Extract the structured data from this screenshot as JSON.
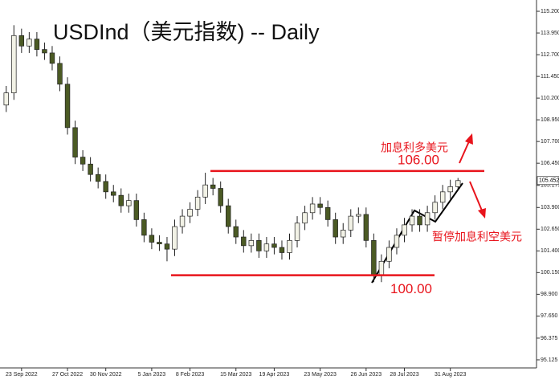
{
  "chart_data": {
    "type": "candlestick",
    "title": "USDInd（美元指数) -- Daily",
    "categories": [
      null,
      null,
      "23 Sep 2022",
      null,
      null,
      null,
      null,
      null,
      "27 Oct 2022",
      null,
      null,
      null,
      null,
      "30 Nov 2022",
      null,
      null,
      null,
      null,
      null,
      "5 Jan 2023",
      null,
      null,
      null,
      null,
      "8 Feb 2023",
      null,
      null,
      null,
      null,
      null,
      "15 Mar 2023",
      null,
      null,
      null,
      null,
      "19 Apr 2023",
      null,
      null,
      null,
      null,
      null,
      "23 May 2023",
      null,
      null,
      null,
      null,
      null,
      "26 Jun 2023",
      null,
      null,
      null,
      null,
      "28 Jul 2023",
      null,
      null,
      null,
      null,
      null,
      "31 Aug 2023",
      null
    ],
    "open": [
      109.8,
      110.5,
      113.8,
      113.2,
      113.6,
      113.0,
      112.8,
      112.2,
      111.0,
      108.5,
      106.8,
      106.4,
      105.8,
      105.4,
      104.8,
      104.6,
      104.0,
      104.3,
      103.2,
      102.3,
      101.9,
      101.8,
      101.5,
      102.8,
      103.4,
      103.8,
      104.5,
      105.2,
      105.0,
      104.0,
      102.8,
      102.2,
      101.7,
      102.0,
      101.4,
      101.8,
      101.6,
      101.3,
      102.0,
      103.0,
      103.6,
      104.1,
      103.9,
      103.2,
      102.2,
      102.6,
      103.4,
      103.5,
      102.0,
      100.0,
      100.8,
      101.6,
      102.3,
      102.9,
      103.4,
      102.9,
      103.6,
      104.2,
      104.8,
      105.1
    ],
    "high": [
      110.9,
      114.4,
      114.2,
      114.0,
      114.0,
      113.4,
      113.2,
      112.6,
      111.4,
      108.9,
      107.2,
      106.8,
      106.2,
      105.8,
      105.2,
      105.0,
      104.7,
      104.7,
      103.6,
      102.7,
      102.3,
      102.2,
      103.2,
      103.8,
      104.2,
      104.9,
      105.9,
      105.6,
      105.4,
      104.4,
      103.2,
      102.6,
      102.4,
      102.4,
      102.2,
      102.2,
      102.0,
      102.4,
      103.4,
      104.0,
      104.5,
      104.5,
      104.3,
      103.6,
      103.0,
      103.8,
      103.9,
      103.9,
      102.4,
      101.2,
      102.0,
      102.7,
      103.3,
      103.8,
      103.8,
      104.0,
      104.6,
      105.2,
      105.5,
      105.6
    ],
    "low": [
      109.4,
      110.1,
      112.8,
      112.8,
      112.6,
      112.4,
      111.8,
      110.6,
      108.1,
      106.4,
      106.0,
      105.4,
      105.0,
      104.4,
      104.2,
      103.6,
      103.6,
      102.8,
      101.9,
      101.5,
      101.4,
      100.8,
      101.1,
      102.4,
      103.0,
      103.4,
      104.1,
      104.6,
      103.6,
      102.4,
      101.8,
      101.3,
      101.3,
      101.0,
      101.0,
      101.2,
      100.9,
      100.9,
      101.6,
      102.6,
      103.2,
      103.5,
      102.8,
      101.8,
      101.8,
      102.2,
      103.0,
      101.6,
      99.6,
      99.6,
      100.4,
      101.2,
      101.9,
      102.5,
      102.5,
      102.5,
      103.2,
      103.8,
      104.4,
      104.9
    ],
    "close": [
      110.5,
      113.8,
      113.2,
      113.6,
      113.0,
      112.8,
      112.2,
      111.0,
      108.5,
      106.8,
      106.4,
      105.8,
      105.4,
      104.8,
      104.6,
      104.0,
      104.3,
      103.2,
      102.3,
      101.9,
      101.8,
      101.5,
      102.8,
      103.4,
      103.8,
      104.5,
      105.2,
      105.0,
      104.0,
      102.8,
      102.2,
      101.7,
      102.0,
      101.4,
      101.8,
      101.6,
      101.3,
      102.0,
      103.0,
      103.6,
      104.1,
      103.9,
      103.2,
      102.2,
      102.6,
      103.4,
      103.5,
      102.0,
      100.0,
      100.8,
      101.6,
      102.3,
      102.9,
      103.4,
      102.9,
      103.6,
      104.2,
      104.8,
      105.1,
      105.45
    ],
    "up_color": "#f2f2e6",
    "down_color": "#4b5a24",
    "ylim": [
      94.66,
      115.85
    ],
    "yticks": [
      {
        "value": 115.2,
        "label": "115.200"
      },
      {
        "value": 113.95,
        "label": "113.950"
      },
      {
        "value": 112.7,
        "label": "112.700"
      },
      {
        "value": 111.45,
        "label": "111.450"
      },
      {
        "value": 110.2,
        "label": "110.200"
      },
      {
        "value": 108.95,
        "label": "108.950"
      },
      {
        "value": 107.7,
        "label": "107.700"
      },
      {
        "value": 106.45,
        "label": "106.450"
      },
      {
        "value": 105.175,
        "label": "105.175"
      },
      {
        "value": 103.9,
        "label": "103.900"
      },
      {
        "value": 102.65,
        "label": "102.650"
      },
      {
        "value": 101.4,
        "label": "101.400"
      },
      {
        "value": 100.15,
        "label": "100.150"
      },
      {
        "value": 98.9,
        "label": "98.900"
      },
      {
        "value": 97.65,
        "label": "97.650"
      },
      {
        "value": 96.375,
        "label": "96.375"
      },
      {
        "value": 95.125,
        "label": "95.125"
      }
    ],
    "last_price": {
      "value": 105.452,
      "label": "105.452"
    },
    "levels": [
      {
        "value": 106,
        "label": "106.00",
        "color": "#e8141c"
      },
      {
        "value": 100,
        "label": "100.00",
        "color": "#e8141c"
      }
    ],
    "annotations": [
      "加息利多美元",
      "暂停加息利空美元"
    ]
  }
}
